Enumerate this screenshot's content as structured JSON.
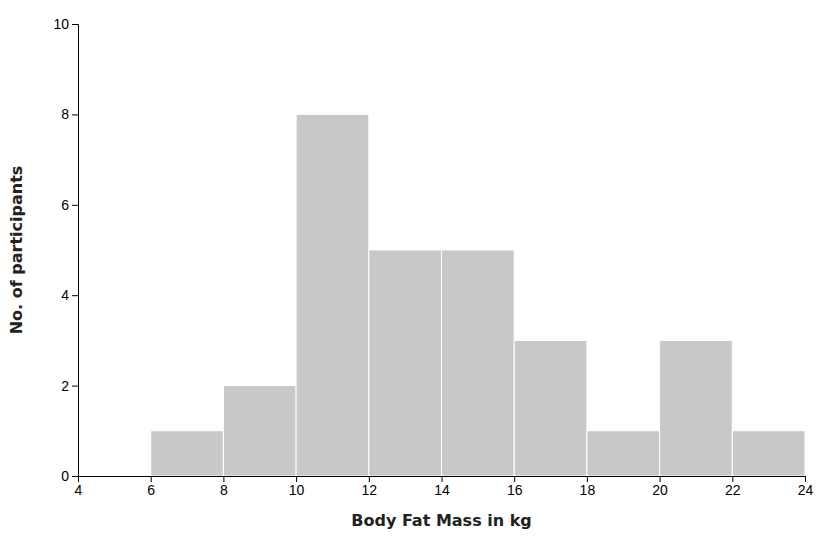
{
  "chart_data": {
    "type": "histogram",
    "xlabel": "Body Fat Mass in kg",
    "ylabel": "No. of participants",
    "bins": [
      4,
      6,
      8,
      10,
      12,
      14,
      16,
      18,
      20,
      22,
      24
    ],
    "values": [
      0,
      1,
      2,
      8,
      5,
      5,
      3,
      1,
      3,
      1
    ],
    "color": "#c8c8c8",
    "xlim": [
      4,
      24
    ],
    "ylim": [
      0,
      10
    ],
    "xticks": [
      4,
      6,
      8,
      10,
      12,
      14,
      16,
      18,
      20,
      22,
      24
    ],
    "yticks": [
      0,
      2,
      4,
      6,
      8,
      10
    ],
    "grid": false
  }
}
